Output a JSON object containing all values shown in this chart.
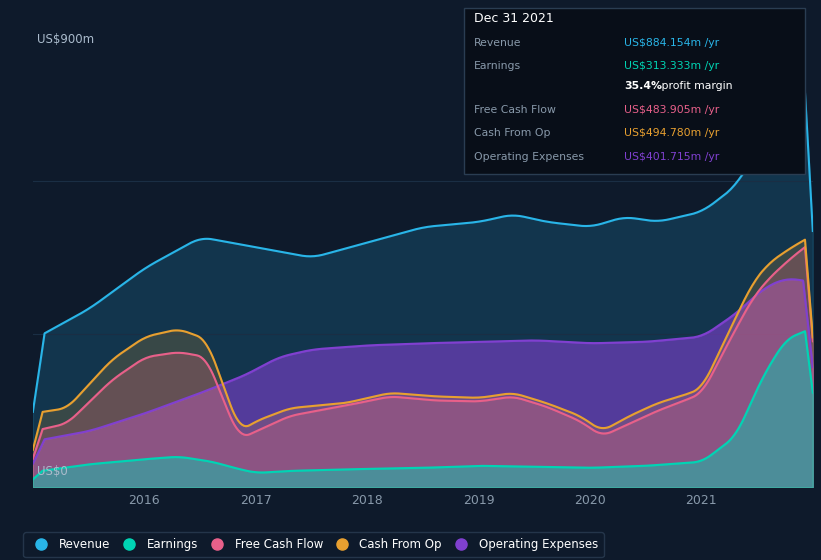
{
  "bg_color": "#0e1a2b",
  "plot_bg_color": "#0e1a2b",
  "grid_color": "#1a2e44",
  "title_y_label": "US$900m",
  "bottom_y_label": "US$0",
  "x_ticks": [
    2016,
    2017,
    2018,
    2019,
    2020,
    2021
  ],
  "series_colors": {
    "revenue": "#29b5e8",
    "earnings": "#00d4b4",
    "free_cash_flow": "#e8608a",
    "cash_from_op": "#e8a030",
    "operating_expenses": "#8040d0"
  },
  "info_box": {
    "date": "Dec 31 2021",
    "revenue_label": "Revenue",
    "revenue_value": "US$884.154m /yr",
    "earnings_label": "Earnings",
    "earnings_value": "US$313.333m /yr",
    "profit_bold": "35.4%",
    "profit_rest": " profit margin",
    "fcf_label": "Free Cash Flow",
    "fcf_value": "US$483.905m /yr",
    "cashop_label": "Cash From Op",
    "cashop_value": "US$494.780m /yr",
    "opex_label": "Operating Expenses",
    "opex_value": "US$401.715m /yr"
  },
  "legend_items": [
    {
      "label": "Revenue",
      "color": "#29b5e8"
    },
    {
      "label": "Earnings",
      "color": "#00d4b4"
    },
    {
      "label": "Free Cash Flow",
      "color": "#e8608a"
    },
    {
      "label": "Cash From Op",
      "color": "#e8a030"
    },
    {
      "label": "Operating Expenses",
      "color": "#8040d0"
    }
  ]
}
